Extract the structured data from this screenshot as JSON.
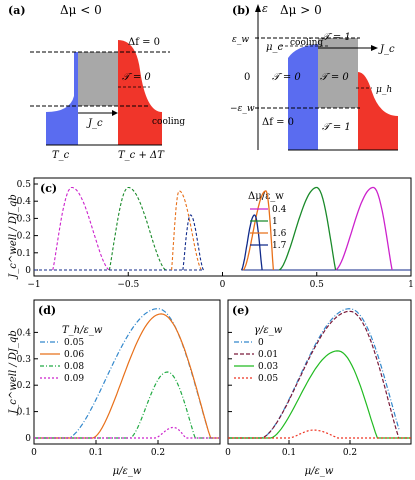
{
  "schematic_a": {
    "tag": "(a)",
    "title": "Δμ < 0",
    "delta_f": "Δf = 0",
    "T_eq": "𝒯 = 0",
    "cooling": "cooling",
    "Jc": "J_c",
    "Tc": "T_c",
    "Tc_plus": "T_c + ΔT"
  },
  "schematic_b": {
    "tag": "(b)",
    "title": "Δμ > 0",
    "epsilon": "ε",
    "eps_w": "ε_w",
    "mu_c": "μ_c",
    "zero": "0",
    "neg_eps_w": "−ε_w",
    "cooling": "cooling",
    "T1_top": "𝒯 = 1",
    "T0_left": "𝒯 = 0",
    "T0_mid": "𝒯 = 0",
    "T1_bottom": "𝒯 = 1",
    "Jc": "J_c",
    "mu_h": "μ_h",
    "delta_f": "Δf = 0"
  },
  "chart_data": [
    {
      "id": "c",
      "tag": "(c)",
      "type": "line",
      "ylabel": "J_c^well / DJ_qb",
      "xlim": [
        -1,
        1
      ],
      "ylim": [
        0,
        0.5
      ],
      "xticks": [
        "−1",
        "−0.5",
        "0",
        "0.5",
        "1"
      ],
      "yticks": [
        "0",
        "0.1",
        "0.2",
        "0.3",
        "0.4",
        "0.5"
      ],
      "legend_title": "Δμ/ε_w",
      "legend_position": "top-right",
      "series": [
        {
          "name": "0.4",
          "color": "#cc22cc",
          "peak_x": 0.8,
          "peak_y": 0.48,
          "left_x": 0.6,
          "right_x": 0.9,
          "mirror_left_x": -0.9,
          "mirror_peak_x": -0.8,
          "mirror_right_x": -0.6
        },
        {
          "name": "1",
          "color": "#1a8a2a",
          "peak_x": 0.5,
          "peak_y": 0.48,
          "left_x": 0.3,
          "right_x": 0.6,
          "mirror_left_x": -0.6,
          "mirror_peak_x": -0.5,
          "mirror_right_x": -0.3
        },
        {
          "name": "1.6",
          "color": "#e8701a",
          "peak_x": 0.23,
          "peak_y": 0.46,
          "left_x": 0.11,
          "right_x": 0.27,
          "mirror_left_x": -0.27,
          "mirror_peak_x": -0.23,
          "mirror_right_x": -0.11
        },
        {
          "name": "1.7",
          "color": "#102a8a",
          "peak_x": 0.17,
          "peak_y": 0.32,
          "left_x": 0.1,
          "right_x": 0.21,
          "mirror_left_x": -0.21,
          "mirror_peak_x": -0.17,
          "mirror_right_x": -0.1
        }
      ]
    },
    {
      "id": "d",
      "tag": "(d)",
      "type": "line",
      "ylabel": "J_c^well / DJ_qb",
      "xlabel": "μ/ε_w",
      "xlim": [
        0,
        0.3
      ],
      "ylim": [
        0,
        0.5
      ],
      "xticks": [
        "0",
        "0.1",
        "0.2"
      ],
      "yticks": [
        "0",
        "0.1",
        "0.2",
        "0.3",
        "0.4"
      ],
      "legend_title": "T_h/ε_w",
      "legend_position": "top-left",
      "series": [
        {
          "name": "0.05",
          "color": "#3388cc",
          "dash": "5,2,1,2",
          "start_x": 0.055,
          "peak_x": 0.2,
          "peak_y": 0.49,
          "end_x": 0.285
        },
        {
          "name": "0.06",
          "color": "#e8701a",
          "dash": "",
          "start_x": 0.095,
          "peak_x": 0.205,
          "peak_y": 0.47,
          "end_x": 0.285
        },
        {
          "name": "0.08",
          "color": "#22aa44",
          "dash": "4,2,1,2",
          "start_x": 0.155,
          "peak_x": 0.215,
          "peak_y": 0.25,
          "end_x": 0.26
        },
        {
          "name": "0.09",
          "color": "#cc22cc",
          "dash": "2,2",
          "start_x": 0.195,
          "peak_x": 0.225,
          "peak_y": 0.04,
          "end_x": 0.245
        }
      ]
    },
    {
      "id": "e",
      "tag": "(e)",
      "type": "line",
      "xlabel": "μ/ε_w",
      "xlim": [
        0,
        0.3
      ],
      "ylim": [
        0,
        0.5
      ],
      "xticks": [
        "0",
        "0.1",
        "0.2"
      ],
      "legend_title": "γ/ε_w",
      "legend_position": "top-left",
      "series": [
        {
          "name": "0",
          "color": "#3388cc",
          "dash": "5,2,1,2",
          "start_x": 0.055,
          "peak_x": 0.2,
          "peak_y": 0.49,
          "end_x": 0.285
        },
        {
          "name": "0.01",
          "color": "#7a1a3a",
          "dash": "4,2",
          "start_x": 0.055,
          "peak_x": 0.2,
          "peak_y": 0.48,
          "end_x": 0.28
        },
        {
          "name": "0.03",
          "color": "#22bb22",
          "dash": "",
          "start_x": 0.07,
          "peak_x": 0.18,
          "peak_y": 0.33,
          "end_x": 0.245
        },
        {
          "name": "0.05",
          "color": "#ee3322",
          "dash": "2,2",
          "start_x": 0.1,
          "peak_x": 0.14,
          "peak_y": 0.03,
          "end_x": 0.18
        }
      ]
    }
  ]
}
